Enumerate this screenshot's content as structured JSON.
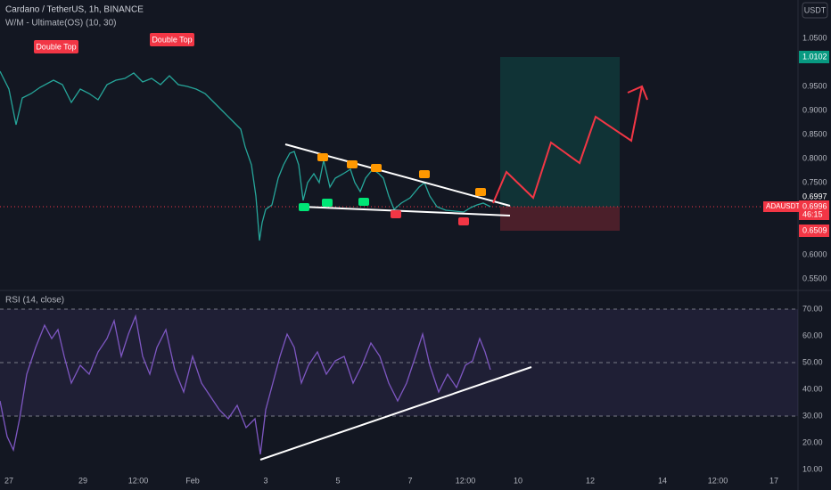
{
  "header": {
    "symbol": "Cardano / TetherUS, 1h, BINANCE",
    "indicator": "W/M - Ultimate(OS) (10, 30)",
    "currency": "USDT"
  },
  "annotations": [
    "Double Top",
    "Double Top"
  ],
  "price_axis": [
    "1.0500",
    "0.9500",
    "0.9000",
    "0.8500",
    "0.8000",
    "0.7500",
    "0.6000",
    "0.5500"
  ],
  "price_tags": {
    "target": "1.0102",
    "high": "0.6997",
    "symbol": "ADAUSDT",
    "last": "0.6996",
    "countdown": "46:15",
    "stop": "0.6509"
  },
  "rsi": {
    "title": "RSI (14, close)",
    "axis": [
      "70.00",
      "60.00",
      "50.00",
      "40.00",
      "30.00",
      "20.00",
      "10.00"
    ]
  },
  "time_axis": [
    "27",
    "29",
    "12:00",
    "Feb",
    "3",
    "5",
    "7",
    "12:00",
    "10",
    "12",
    "14",
    "12:00",
    "17"
  ]
}
